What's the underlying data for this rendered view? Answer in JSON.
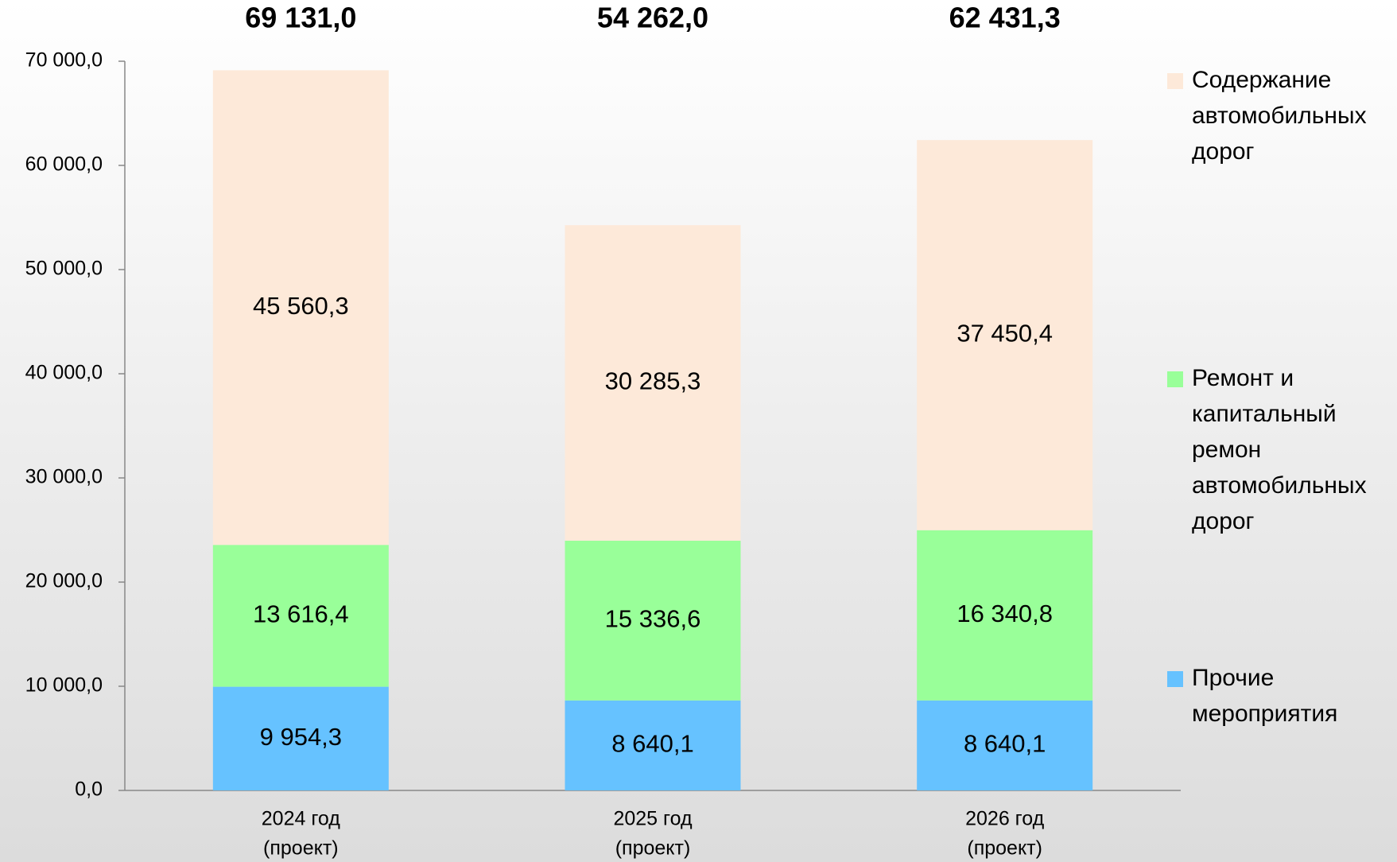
{
  "chart_data": {
    "type": "stacked_bar",
    "categories": [
      [
        "2024 год",
        "(проект)"
      ],
      [
        "2025 год",
        "(проект)"
      ],
      [
        "2026 год",
        "(проект)"
      ]
    ],
    "series": [
      {
        "name": "Прочие мероприятия",
        "color": "#66c2ff",
        "values": [
          9954.3,
          8640.1,
          8640.1
        ],
        "value_labels": [
          "9 954,3",
          "8 640,1",
          "8 640,1"
        ]
      },
      {
        "name": "Ремонт и капитальный ремон автомобильных дорог",
        "color": "#99ff99",
        "values": [
          13616.4,
          15336.6,
          16340.8
        ],
        "value_labels": [
          "13 616,4",
          "15 336,6",
          "16 340,8"
        ]
      },
      {
        "name": "Содержание автомобильных дорог",
        "color": "#fde9d9",
        "values": [
          45560.3,
          30285.3,
          37450.4
        ],
        "value_labels": [
          "45 560,3",
          "30 285,3",
          "37 450,4"
        ]
      }
    ],
    "totals": {
      "values": [
        69131.0,
        54262.0,
        62431.3
      ],
      "value_labels": [
        "69 131,0",
        "54 262,0",
        "62 431,3"
      ]
    },
    "ylim": [
      0,
      70000
    ],
    "yticks": [
      {
        "value": 0,
        "label": "0,0"
      },
      {
        "value": 10000,
        "label": "10 000,0"
      },
      {
        "value": 20000,
        "label": "20 000,0"
      },
      {
        "value": 30000,
        "label": "30 000,0"
      },
      {
        "value": 40000,
        "label": "40 000,0"
      },
      {
        "value": 50000,
        "label": "50 000,0"
      },
      {
        "value": 60000,
        "label": "60 000,0"
      },
      {
        "value": 70000,
        "label": "70 000,0"
      }
    ],
    "legend": "right"
  }
}
